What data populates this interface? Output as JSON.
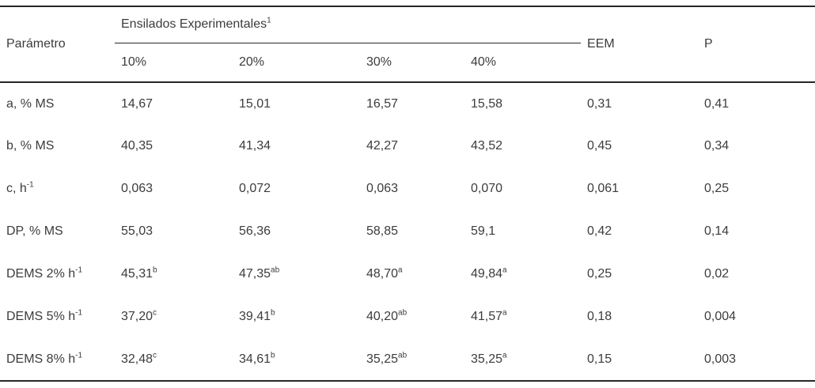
{
  "table": {
    "param_header": "Parámetro",
    "group_header": "Ensilados Experimentales",
    "group_header_sup": "1",
    "eem_header": "EEM",
    "p_header": "P",
    "sub_headers": [
      "10%",
      "20%",
      "30%",
      "40%"
    ],
    "rows": [
      {
        "param": "a, % MS",
        "param_sup": "",
        "values": [
          "14,67",
          "15,01",
          "16,57",
          "15,58"
        ],
        "sups": [
          "",
          "",
          "",
          ""
        ],
        "eem": "0,31",
        "p": "0,41"
      },
      {
        "param": "b, % MS",
        "param_sup": "",
        "values": [
          "40,35",
          "41,34",
          "42,27",
          "43,52"
        ],
        "sups": [
          "",
          "",
          "",
          ""
        ],
        "eem": "0,45",
        "p": "0,34"
      },
      {
        "param": "c, h",
        "param_sup": "-1",
        "values": [
          "0,063",
          "0,072",
          "0,063",
          "0,070"
        ],
        "sups": [
          "",
          "",
          "",
          ""
        ],
        "eem": "0,061",
        "p": "0,25"
      },
      {
        "param": "DP, % MS",
        "param_sup": "",
        "values": [
          "55,03",
          "56,36",
          "58,85",
          "59,1"
        ],
        "sups": [
          "",
          "",
          "",
          ""
        ],
        "eem": "0,42",
        "p": "0,14"
      },
      {
        "param": "DEMS 2% h",
        "param_sup": "-1",
        "values": [
          "45,31",
          "47,35",
          "48,70",
          "49,84"
        ],
        "sups": [
          "b",
          "ab",
          "a",
          "a"
        ],
        "eem": "0,25",
        "p": "0,02"
      },
      {
        "param": "DEMS 5% h",
        "param_sup": "-1",
        "values": [
          "37,20",
          "39,41",
          "40,20",
          "41,57"
        ],
        "sups": [
          "c",
          "b",
          "ab",
          "a"
        ],
        "eem": "0,18",
        "p": "0,004"
      },
      {
        "param": "DEMS 8% h",
        "param_sup": "-1",
        "values": [
          "32,48",
          "34,61",
          "35,25",
          "35,25"
        ],
        "sups": [
          "c",
          "b",
          "ab",
          "a"
        ],
        "eem": "0,15",
        "p": "0,003"
      }
    ],
    "colors": {
      "text": "#3c3c3c",
      "rule_line": "#262626",
      "background": "#ffffff"
    }
  }
}
